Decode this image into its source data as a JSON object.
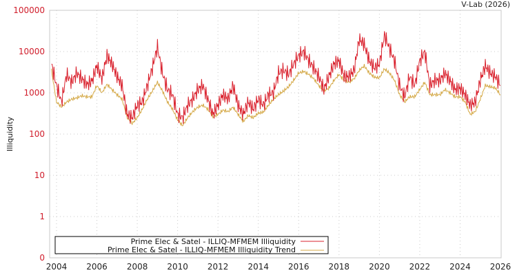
{
  "credit": "V-Lab (2026)",
  "chart_data": {
    "type": "line",
    "title": "",
    "xlabel": "",
    "ylabel": "Illiquidity",
    "yscale": "log",
    "ylim": [
      0,
      100000
    ],
    "xlim": [
      2003.7,
      2026.05
    ],
    "y_ticks": [
      "100000",
      "10000",
      "1000",
      "100",
      "10",
      "1",
      "0"
    ],
    "x_ticks": [
      "2004",
      "2006",
      "2008",
      "2010",
      "2012",
      "2014",
      "2016",
      "2018",
      "2020",
      "2022",
      "2024",
      "2026"
    ],
    "grid": true,
    "legend_position": "bottom-left inside",
    "x": [
      2003.75,
      2004.0,
      2004.25,
      2004.5,
      2004.75,
      2005.0,
      2005.25,
      2005.5,
      2005.75,
      2006.0,
      2006.25,
      2006.5,
      2006.75,
      2007.0,
      2007.25,
      2007.5,
      2007.75,
      2008.0,
      2008.25,
      2008.5,
      2008.75,
      2009.0,
      2009.25,
      2009.5,
      2009.75,
      2010.0,
      2010.25,
      2010.5,
      2010.75,
      2011.0,
      2011.25,
      2011.5,
      2011.75,
      2012.0,
      2012.25,
      2012.5,
      2012.75,
      2013.0,
      2013.25,
      2013.5,
      2013.75,
      2014.0,
      2014.25,
      2014.5,
      2014.75,
      2015.0,
      2015.25,
      2015.5,
      2015.75,
      2016.0,
      2016.25,
      2016.5,
      2016.75,
      2017.0,
      2017.25,
      2017.5,
      2017.75,
      2018.0,
      2018.25,
      2018.5,
      2018.75,
      2019.0,
      2019.25,
      2019.5,
      2019.75,
      2020.0,
      2020.25,
      2020.5,
      2020.75,
      2021.0,
      2021.25,
      2021.5,
      2021.75,
      2022.0,
      2022.25,
      2022.5,
      2022.75,
      2023.0,
      2023.25,
      2023.5,
      2023.75,
      2024.0,
      2024.25,
      2024.5,
      2024.75,
      2025.0,
      2025.25,
      2025.5,
      2025.75,
      2026.0
    ],
    "series": [
      {
        "name": "Prime Elec & Satel - ILLIQ-MFMEM Illiquidity",
        "color": "#d9202c",
        "values": [
          5000,
          1500,
          600,
          2800,
          1800,
          3000,
          2200,
          1600,
          1900,
          4500,
          2200,
          8000,
          5000,
          2500,
          1500,
          300,
          250,
          500,
          600,
          1500,
          4000,
          13000,
          3000,
          1200,
          900,
          300,
          250,
          500,
          700,
          1200,
          1500,
          700,
          300,
          500,
          900,
          700,
          1500,
          500,
          300,
          600,
          400,
          700,
          500,
          900,
          1000,
          3000,
          3500,
          2800,
          5000,
          8000,
          10000,
          6000,
          4000,
          2500,
          1200,
          2500,
          5000,
          6000,
          2500,
          2500,
          3500,
          20000,
          15000,
          6000,
          4000,
          5000,
          25000,
          12000,
          6000,
          1500,
          800,
          2500,
          1500,
          6000,
          10000,
          1500,
          2000,
          2000,
          3000,
          2000,
          1200,
          1300,
          900,
          500,
          600,
          2000,
          4500,
          3000,
          2500,
          1500
        ]
      },
      {
        "name": "Prime Elec & Satel - ILLIQ-MFMEM Illiquidity Trend",
        "color": "#d4a845",
        "values": [
          3500,
          600,
          450,
          600,
          700,
          750,
          850,
          800,
          800,
          1500,
          1000,
          1600,
          1200,
          900,
          700,
          250,
          180,
          250,
          400,
          700,
          1100,
          1800,
          1100,
          600,
          400,
          220,
          160,
          250,
          350,
          450,
          500,
          400,
          260,
          300,
          380,
          350,
          450,
          300,
          200,
          280,
          250,
          320,
          340,
          500,
          700,
          900,
          1100,
          1400,
          2000,
          3000,
          3300,
          2800,
          2200,
          1500,
          1100,
          1300,
          2000,
          2800,
          2000,
          1800,
          2200,
          3500,
          4500,
          3000,
          2400,
          2300,
          3800,
          3000,
          2000,
          900,
          600,
          800,
          800,
          1200,
          1800,
          900,
          900,
          900,
          1200,
          1000,
          800,
          800,
          600,
          300,
          350,
          700,
          1500,
          1400,
          1300,
          900
        ]
      }
    ]
  },
  "legend": {
    "items": [
      {
        "label": "Prime Elec & Satel - ILLIQ-MFMEM Illiquidity",
        "color": "#d9202c"
      },
      {
        "label": "Prime Elec & Satel - ILLIQ-MFMEM Illiquidity Trend",
        "color": "#d4a845"
      }
    ]
  }
}
